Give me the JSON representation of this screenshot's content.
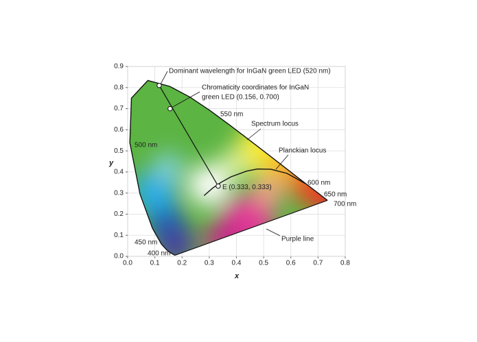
{
  "chart_data": {
    "type": "chromaticity",
    "xlabel": "x",
    "ylabel": "y",
    "xlim": [
      0,
      0.8
    ],
    "ylim": [
      0,
      0.9
    ],
    "xticks": [
      {
        "value": 0,
        "label": "0.0"
      },
      0.1,
      0.2,
      0.3,
      0.4,
      0.5,
      0.6,
      0.7,
      0.8
    ],
    "yticks": [
      {
        "value": 0,
        "label": "0.0"
      },
      0.1,
      0.2,
      0.3,
      0.4,
      0.5,
      0.6,
      0.7,
      0.8,
      0.9
    ],
    "grid": true,
    "series": [
      {
        "name": "Spectrum locus",
        "color": "#111111",
        "x": [
          0.1741,
          0.1566,
          0.144,
          0.1241,
          0.0913,
          0.0454,
          0.0082,
          0.0139,
          0.0743,
          0.1547,
          0.2296,
          0.3016,
          0.3731,
          0.4441,
          0.5125,
          0.5752,
          0.627,
          0.6915,
          0.726,
          0.7347
        ],
        "y": [
          0.005,
          0.0177,
          0.0297,
          0.0578,
          0.1327,
          0.295,
          0.5384,
          0.7502,
          0.8338,
          0.8059,
          0.7543,
          0.6923,
          0.6245,
          0.5547,
          0.4866,
          0.4242,
          0.3725,
          0.3083,
          0.274,
          0.2653
        ]
      },
      {
        "name": "Planckian locus",
        "color": "#111111",
        "x": [
          0.281,
          0.313,
          0.345,
          0.38,
          0.437,
          0.477,
          0.527,
          0.586,
          0.653
        ],
        "y": [
          0.288,
          0.324,
          0.352,
          0.377,
          0.404,
          0.414,
          0.413,
          0.393,
          0.345
        ]
      }
    ],
    "points": [
      {
        "x": 0.116,
        "y": 0.81,
        "label": "Dominant wavelength for InGaN green LED (520 nm)"
      },
      {
        "x": 0.156,
        "y": 0.7,
        "label": [
          "Chromaticity coordinates for InGaN",
          "green LED (0.156, 0.700)"
        ]
      },
      {
        "x": 0.333,
        "y": 0.333,
        "label": "E (0.333, 0.333)"
      }
    ],
    "wavelength_labels": [
      "400 nm",
      "450 nm",
      "500 nm",
      "550 nm",
      "600 nm",
      "650 nm",
      "700 nm"
    ],
    "purple_line_label": "Purple line"
  }
}
